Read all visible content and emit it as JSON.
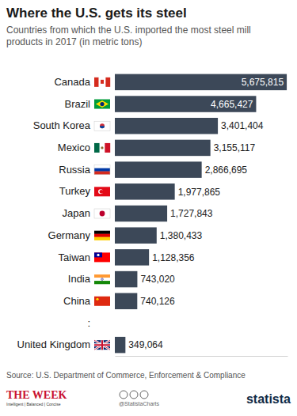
{
  "chart_data": {
    "type": "bar",
    "orientation": "horizontal",
    "title": "Where the U.S. gets its steel",
    "subtitle": "Countries from which the U.S. imported the most steel mill products in 2017 (in metric tons)",
    "categories": [
      "Canada",
      "Brazil",
      "South Korea",
      "Mexico",
      "Russia",
      "Turkey",
      "Japan",
      "Germany",
      "Taiwan",
      "India",
      "China",
      ":",
      "United Kingdom"
    ],
    "values": [
      5675815,
      4665427,
      3401404,
      3155117,
      2866695,
      1977865,
      1727843,
      1380433,
      1128356,
      743020,
      740126,
      null,
      349064
    ],
    "value_labels": [
      "5,675,815",
      "4,665,427",
      "3,401,404",
      "3,155,117",
      "2,866,695",
      "1,977,865",
      "1,727,843",
      "1,380,433",
      "1,128,356",
      "743,020",
      "740,126",
      null,
      "349,064"
    ],
    "color": "#3c4858",
    "data_labels": true,
    "tick_labels": "y",
    "xlim": [
      0,
      5700000
    ],
    "source": "Source: U.S. Department of Commerce, Enforcement & Compliance",
    "credits": [
      "THE WEEK",
      "Intelligent | Balanced | Concise",
      "@StatistaCharts",
      "statista"
    ]
  }
}
